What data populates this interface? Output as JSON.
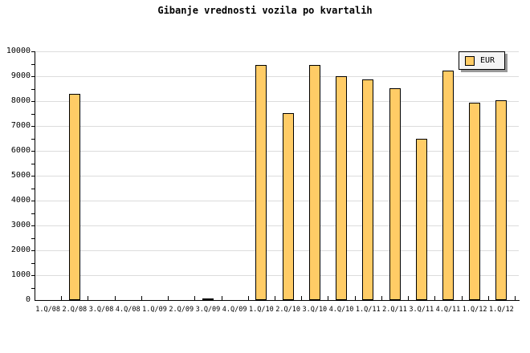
{
  "title": "Gibanje vrednosti vozila po kvartalih",
  "legend": {
    "label": "EUR"
  },
  "colors": {
    "page_bg": "#FFFFFF",
    "bar_fill": "#FFCC66",
    "bar_border": "#000000",
    "gridline": "#DCDCDC",
    "axis": "#000000",
    "legend_bg": "#F4F4F4",
    "legend_shadow": "#999999"
  },
  "chart_data": {
    "type": "bar",
    "title": "Gibanje vrednosti vozila po kvartalih",
    "categories": [
      "1.Q/08",
      "2.Q/08",
      "3.Q/08",
      "4.Q/08",
      "1.Q/09",
      "2.Q/09",
      "3.Q/09",
      "4.Q/09",
      "1.Q/10",
      "2.Q/10",
      "3.Q/10",
      "4.Q/10",
      "1.Q/11",
      "2.Q/11",
      "3.Q/11",
      "4.Q/11",
      "1.Q/12",
      "1.Q/12"
    ],
    "series": [
      {
        "name": "EUR",
        "values": [
          0,
          8280,
          0,
          0,
          0,
          0,
          75,
          0,
          9440,
          7530,
          9450,
          9000,
          8860,
          8520,
          6480,
          9220,
          7950,
          8030
        ]
      }
    ],
    "xlabel": "",
    "ylabel": "",
    "ylim": [
      0,
      10000
    ],
    "ytick_interval": 1000,
    "yminor_tick_interval": 500,
    "grid": "horizontal-major",
    "legend_position": "top-right"
  }
}
